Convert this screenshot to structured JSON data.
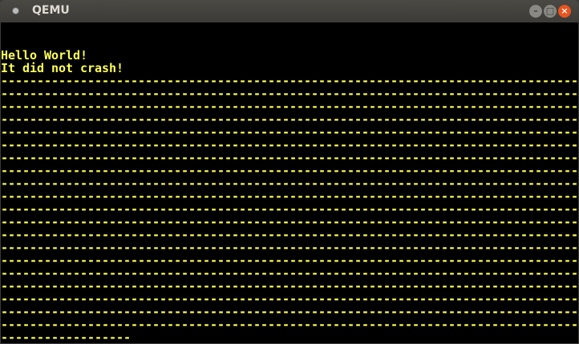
{
  "window": {
    "title": "QEMU",
    "buttons": {
      "minimize": "–",
      "maximize": "□",
      "close": "×"
    }
  },
  "console": {
    "text_color": "#ffff55",
    "background": "#000000",
    "lines": [
      "",
      "",
      "Hello World!",
      "It did not crash!"
    ],
    "fill": {
      "char": "-",
      "full_rows": 20,
      "columns": 80,
      "last_row_length": 18
    }
  }
}
